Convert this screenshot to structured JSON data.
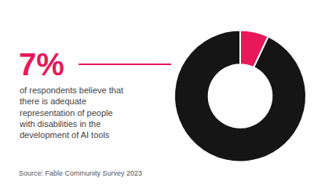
{
  "chart_data": {
    "type": "donut",
    "values": [
      7,
      93
    ],
    "colors": [
      "#E8185A",
      "#151515"
    ],
    "annotations": [
      {
        "text": "7%",
        "color": "#E8185A"
      },
      {
        "text": "of respondents believe that\nthere is adequate\nrepresentation of people\nwith disabilities in the\ndevelopment of AI tools",
        "color": "#444444"
      },
      {
        "text": "Source: Fable Community Survey 2023",
        "color": "#555555"
      }
    ]
  }
}
